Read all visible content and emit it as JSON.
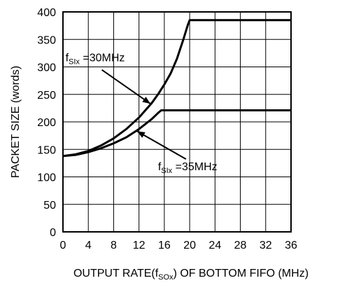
{
  "chart_data": {
    "type": "line",
    "title": "",
    "xlabel": {
      "pre": "OUTPUT RATE(f",
      "sub": "SOx",
      "post": ") OF BOTTOM FIFO (MHz)"
    },
    "ylabel": "PACKET SIZE (words)",
    "xlim": [
      0,
      36
    ],
    "ylim": [
      0,
      400
    ],
    "xticks": [
      0,
      4,
      8,
      12,
      16,
      20,
      24,
      28,
      32,
      36
    ],
    "yticks": [
      0,
      50,
      100,
      150,
      200,
      250,
      300,
      350,
      400
    ],
    "grid": true,
    "series": [
      {
        "name": "fSIx=30MHz",
        "x": [
          0,
          2,
          4,
          6,
          8,
          10,
          12,
          14,
          15,
          16,
          17,
          18,
          19,
          19.7,
          20,
          36
        ],
        "y": [
          138,
          141,
          147,
          157,
          170,
          187,
          208,
          234,
          250,
          268,
          288,
          315,
          350,
          376,
          385,
          385
        ]
      },
      {
        "name": "fSIx=35MHz",
        "x": [
          0,
          2,
          4,
          6,
          8,
          10,
          12,
          14,
          15,
          15.5,
          36
        ],
        "y": [
          138,
          140,
          145,
          152,
          161,
          172,
          187,
          205,
          216,
          221,
          221
        ]
      }
    ],
    "annotations": [
      {
        "base": "f",
        "sub": "SIx",
        "rest": " =30MHz",
        "label_x": 1.5,
        "label_y": 310,
        "arrow_to_x": 13.8,
        "arrow_to_y": 233
      },
      {
        "base": "f",
        "sub": "SIx",
        "rest": " =35MHz",
        "label_x": 15,
        "label_y": 112,
        "arrow_to_x": 11.7,
        "arrow_to_y": 183
      }
    ]
  }
}
